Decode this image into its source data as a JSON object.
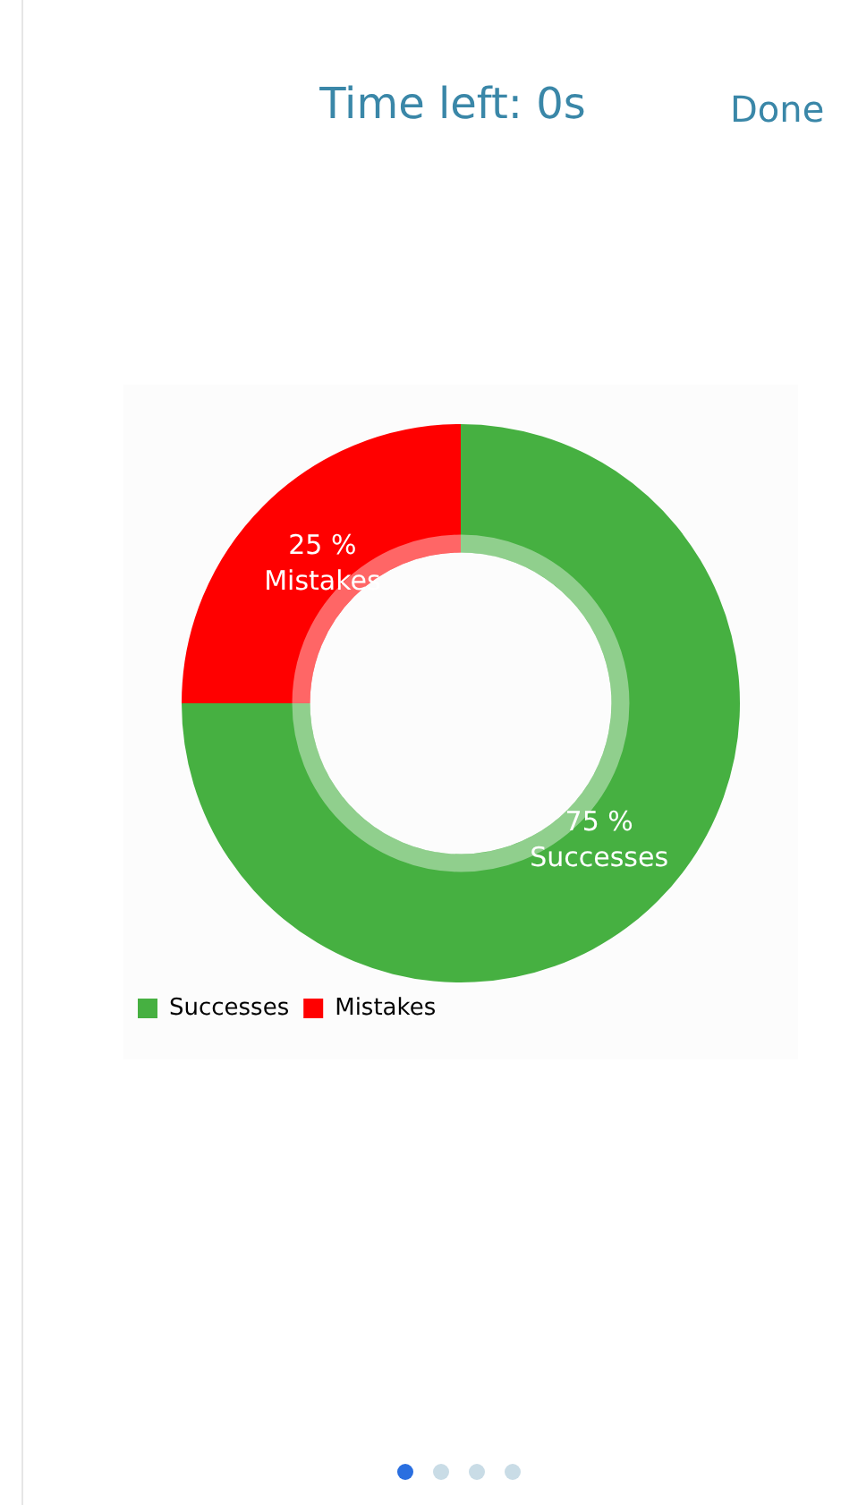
{
  "chart_data": {
    "type": "donut",
    "annotations": [
      "Time left: 0s",
      "Done"
    ],
    "categories": [
      "Successes",
      "Mistakes"
    ],
    "values": [
      75,
      25
    ],
    "colors": [
      "#46b041",
      "#ff0000"
    ],
    "value_labels": [
      "75 %",
      "25 %"
    ],
    "legend": "bottom left"
  }
}
